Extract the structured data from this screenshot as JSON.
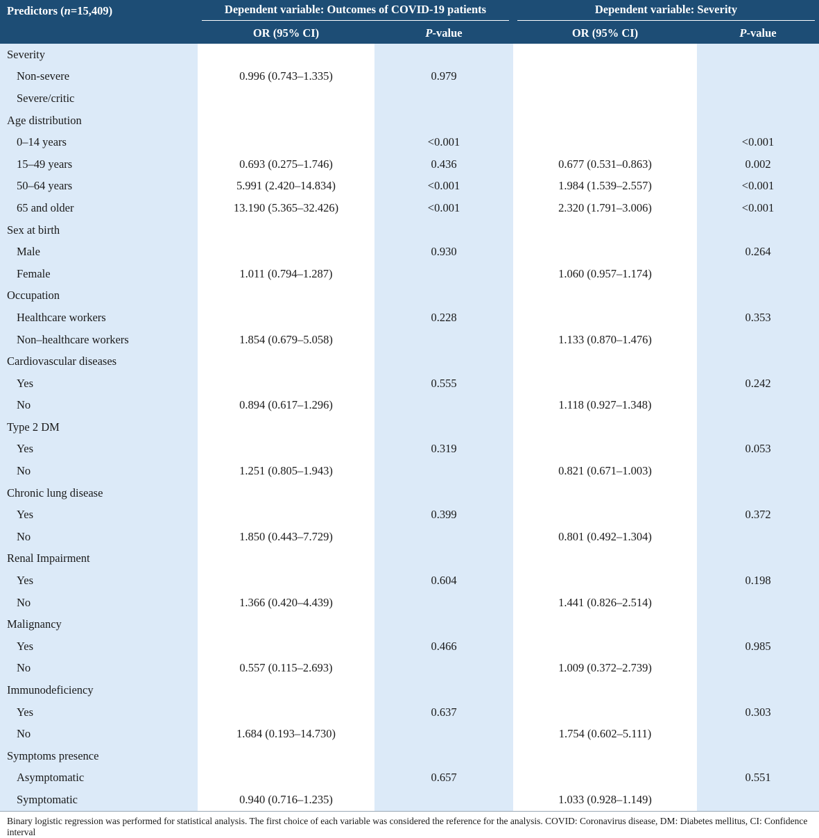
{
  "header": {
    "predictors_prefix": "Predictors (",
    "predictors_n": "n",
    "predictors_suffix": "=15,409)",
    "group1": "Dependent variable: Outcomes of COVID-19 patients",
    "group2": "Dependent variable: Severity",
    "or_label": "OR (95% CI)",
    "p_italic": "P",
    "p_suffix": "-value"
  },
  "rows": [
    {
      "label": "Severity",
      "sub": false,
      "or1": "",
      "p1": "",
      "or2": "",
      "p2": ""
    },
    {
      "label": "Non-severe",
      "sub": true,
      "or1": "0.996 (0.743–1.335)",
      "p1": "0.979",
      "or2": "",
      "p2": ""
    },
    {
      "label": "Severe/critic",
      "sub": true,
      "or1": "",
      "p1": "",
      "or2": "",
      "p2": ""
    },
    {
      "label": "Age distribution",
      "sub": false,
      "or1": "",
      "p1": "",
      "or2": "",
      "p2": ""
    },
    {
      "label": "0–14 years",
      "sub": true,
      "or1": "",
      "p1": "<0.001",
      "or2": "",
      "p2": "<0.001"
    },
    {
      "label": "15–49 years",
      "sub": true,
      "or1": "0.693 (0.275–1.746)",
      "p1": "0.436",
      "or2": "0.677 (0.531–0.863)",
      "p2": "0.002"
    },
    {
      "label": "50–64 years",
      "sub": true,
      "or1": "5.991 (2.420–14.834)",
      "p1": "<0.001",
      "or2": "1.984 (1.539–2.557)",
      "p2": "<0.001"
    },
    {
      "label": "65 and older",
      "sub": true,
      "or1": "13.190 (5.365–32.426)",
      "p1": "<0.001",
      "or2": "2.320 (1.791–3.006)",
      "p2": "<0.001"
    },
    {
      "label": "Sex at birth",
      "sub": false,
      "or1": "",
      "p1": "",
      "or2": "",
      "p2": ""
    },
    {
      "label": "Male",
      "sub": true,
      "or1": "",
      "p1": "0.930",
      "or2": "",
      "p2": "0.264"
    },
    {
      "label": "Female",
      "sub": true,
      "or1": "1.011 (0.794–1.287)",
      "p1": "",
      "or2": "1.060 (0.957–1.174)",
      "p2": ""
    },
    {
      "label": "Occupation",
      "sub": false,
      "or1": "",
      "p1": "",
      "or2": "",
      "p2": ""
    },
    {
      "label": "Healthcare workers",
      "sub": true,
      "or1": "",
      "p1": "0.228",
      "or2": "",
      "p2": "0.353"
    },
    {
      "label": "Non–healthcare workers",
      "sub": true,
      "or1": "1.854 (0.679–5.058)",
      "p1": "",
      "or2": "1.133 (0.870–1.476)",
      "p2": ""
    },
    {
      "label": "Cardiovascular diseases",
      "sub": false,
      "or1": "",
      "p1": "",
      "or2": "",
      "p2": ""
    },
    {
      "label": "Yes",
      "sub": true,
      "or1": "",
      "p1": "0.555",
      "or2": "",
      "p2": "0.242"
    },
    {
      "label": "No",
      "sub": true,
      "or1": "0.894 (0.617–1.296)",
      "p1": "",
      "or2": "1.118 (0.927–1.348)",
      "p2": ""
    },
    {
      "label": "Type 2 DM",
      "sub": false,
      "or1": "",
      "p1": "",
      "or2": "",
      "p2": ""
    },
    {
      "label": "Yes",
      "sub": true,
      "or1": "",
      "p1": "0.319",
      "or2": "",
      "p2": "0.053"
    },
    {
      "label": "No",
      "sub": true,
      "or1": "1.251 (0.805–1.943)",
      "p1": "",
      "or2": "0.821 (0.671–1.003)",
      "p2": ""
    },
    {
      "label": "Chronic lung disease",
      "sub": false,
      "or1": "",
      "p1": "",
      "or2": "",
      "p2": ""
    },
    {
      "label": "Yes",
      "sub": true,
      "or1": "",
      "p1": "0.399",
      "or2": "",
      "p2": "0.372"
    },
    {
      "label": "No",
      "sub": true,
      "or1": "1.850 (0.443–7.729)",
      "p1": "",
      "or2": "0.801 (0.492–1.304)",
      "p2": ""
    },
    {
      "label": "Renal Impairment",
      "sub": false,
      "or1": "",
      "p1": "",
      "or2": "",
      "p2": ""
    },
    {
      "label": "Yes",
      "sub": true,
      "or1": "",
      "p1": "0.604",
      "or2": "",
      "p2": "0.198"
    },
    {
      "label": "No",
      "sub": true,
      "or1": "1.366 (0.420–4.439)",
      "p1": "",
      "or2": "1.441 (0.826–2.514)",
      "p2": ""
    },
    {
      "label": "Malignancy",
      "sub": false,
      "or1": "",
      "p1": "",
      "or2": "",
      "p2": ""
    },
    {
      "label": "Yes",
      "sub": true,
      "or1": "",
      "p1": "0.466",
      "or2": "",
      "p2": "0.985"
    },
    {
      "label": "No",
      "sub": true,
      "or1": "0.557 (0.115–2.693)",
      "p1": "",
      "or2": "1.009 (0.372–2.739)",
      "p2": ""
    },
    {
      "label": "Immunodeficiency",
      "sub": false,
      "or1": "",
      "p1": "",
      "or2": "",
      "p2": ""
    },
    {
      "label": "Yes",
      "sub": true,
      "or1": "",
      "p1": "0.637",
      "or2": "",
      "p2": "0.303"
    },
    {
      "label": "No",
      "sub": true,
      "or1": "1.684 (0.193–14.730)",
      "p1": "",
      "or2": "1.754 (0.602–5.111)",
      "p2": ""
    },
    {
      "label": "Symptoms presence",
      "sub": false,
      "or1": "",
      "p1": "",
      "or2": "",
      "p2": ""
    },
    {
      "label": "Asymptomatic",
      "sub": true,
      "or1": "",
      "p1": "0.657",
      "or2": "",
      "p2": "0.551"
    },
    {
      "label": "Symptomatic",
      "sub": true,
      "or1": "0.940 (0.716–1.235)",
      "p1": "",
      "or2": "1.033 (0.928–1.149)",
      "p2": ""
    }
  ],
  "footnote": "Binary logistic regression was performed for statistical analysis. The first choice of each variable was considered the reference for the analysis. COVID: Coronavirus disease, DM: Diabetes mellitus, CI: Confidence interval",
  "colors": {
    "header_bg": "#1d4d75",
    "header_text": "#ffffff",
    "shaded_column": "#dceaf8",
    "plain_column": "#ffffff"
  }
}
